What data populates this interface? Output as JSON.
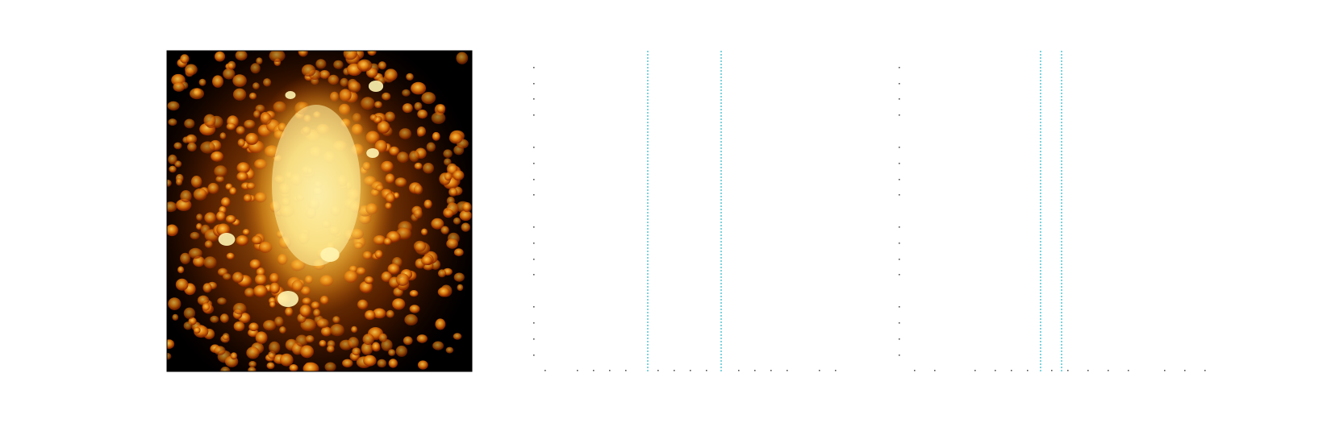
{
  "figure": {
    "background_color": "#ffffff"
  },
  "heatmap_panel": {
    "colormap": [
      "#000000",
      "#5a0c00",
      "#b33a00",
      "#e9820c",
      "#ffc13d",
      "#fff1a0"
    ],
    "description_color_low": "#000000",
    "description_color_high": "#fff1a0"
  },
  "profile_panels": [
    {
      "line_color": "#29b6c9",
      "tick_color": "#555555"
    },
    {
      "line_color": "#29b6c9",
      "tick_color": "#555555"
    }
  ]
}
